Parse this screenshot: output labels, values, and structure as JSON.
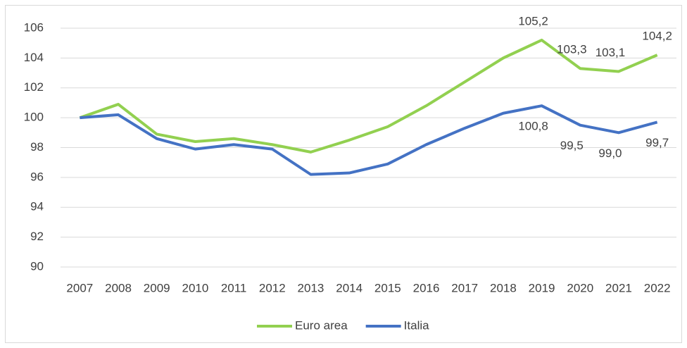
{
  "chart_data": {
    "type": "line",
    "categories": [
      "2007",
      "2008",
      "2009",
      "2010",
      "2011",
      "2012",
      "2013",
      "2014",
      "2015",
      "2016",
      "2017",
      "2018",
      "2019",
      "2020",
      "2021",
      "2022"
    ],
    "series": [
      {
        "name": "Euro area",
        "color": "#92d050",
        "values": [
          100,
          100.9,
          98.9,
          98.4,
          98.6,
          98.2,
          97.7,
          98.5,
          99.4,
          100.8,
          102.4,
          104.0,
          105.2,
          103.3,
          103.1,
          104.2
        ],
        "value_labels": [
          null,
          null,
          null,
          null,
          null,
          null,
          null,
          null,
          null,
          null,
          null,
          null,
          "105,2",
          "103,3",
          "103,1",
          "104,2"
        ]
      },
      {
        "name": "Italia",
        "color": "#4472c4",
        "values": [
          100,
          100.2,
          98.6,
          97.9,
          98.2,
          97.9,
          96.2,
          96.3,
          96.9,
          98.2,
          99.3,
          100.3,
          100.8,
          99.5,
          99.0,
          99.7
        ],
        "value_labels": [
          null,
          null,
          null,
          null,
          null,
          null,
          null,
          null,
          null,
          null,
          null,
          null,
          "100,8",
          "99,5",
          "99,0",
          "99,7"
        ]
      }
    ],
    "ylim": [
      90,
      106
    ],
    "yticks": [
      90,
      92,
      94,
      96,
      98,
      100,
      102,
      104,
      106
    ],
    "grid": true,
    "legend": "bottom"
  }
}
